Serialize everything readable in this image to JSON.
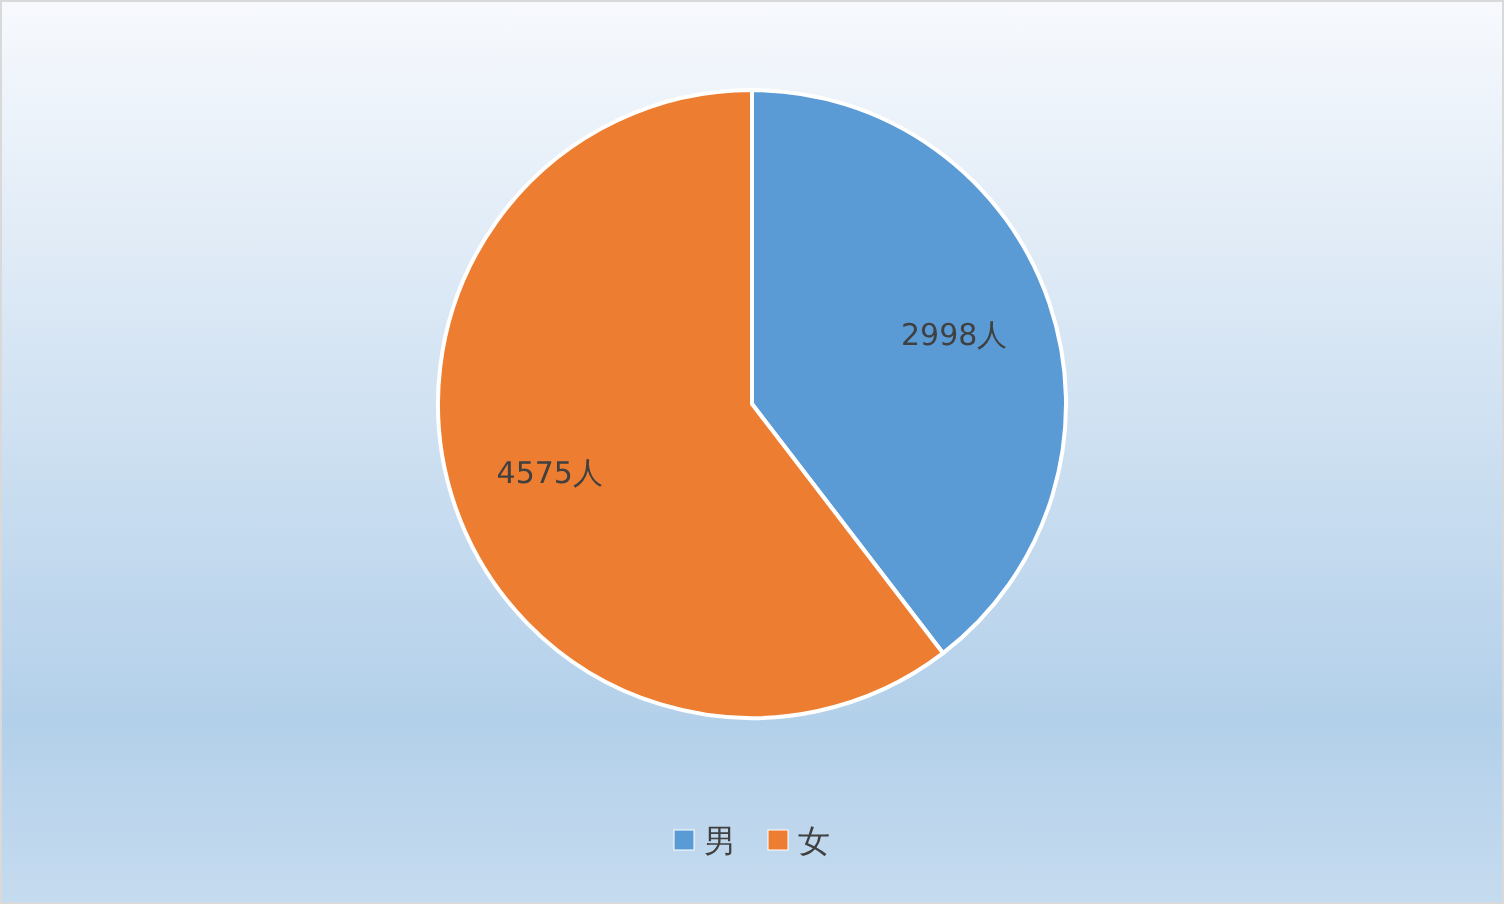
{
  "chart_data": {
    "type": "pie",
    "categories": [
      "男",
      "女"
    ],
    "values": [
      2998,
      4575
    ],
    "colors": [
      "#5b9bd5",
      "#ed7d31"
    ],
    "value_labels": [
      "2998人",
      "4575人"
    ],
    "legend": "bottom"
  }
}
